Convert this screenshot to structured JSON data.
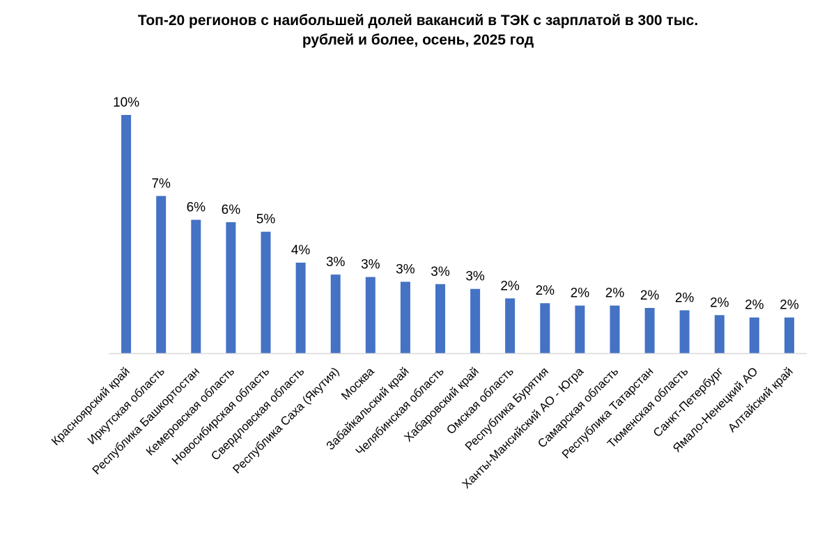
{
  "chart_data": {
    "type": "bar",
    "title_lines": [
      "Топ-20 регионов с наибольшей долей вакансий в ТЭК с зарплатой в 300 тыс.",
      "рублей и более, осень, 2025 год"
    ],
    "xlabel": "",
    "ylabel": "",
    "ylim": [
      0,
      10
    ],
    "grid": false,
    "legend": "none",
    "bar_color": "#4472C4",
    "axis_color": "#D9D9D9",
    "categories": [
      "Красноярский край",
      "Иркутская область",
      "Республика Башкортостан",
      "Кемеровская область",
      "Новосибирская область",
      "Свердловская область",
      "Республика Саха (Якутия)",
      "Москва",
      "Забайкальский край",
      "Челябинская область",
      "Хабаровский край",
      "Омская область",
      "Республика Бурятия",
      "Ханты-Мансийский АО - Югра",
      "Самарская область",
      "Республика Татарстан",
      "Тюменская область",
      "Санкт-Петербург",
      "Ямало-Ненецкий АО",
      "Алтайский край"
    ],
    "values": [
      10.0,
      6.6,
      5.6,
      5.5,
      5.1,
      3.8,
      3.3,
      3.2,
      3.0,
      2.9,
      2.7,
      2.3,
      2.1,
      2.0,
      2.0,
      1.9,
      1.8,
      1.6,
      1.5,
      1.5
    ],
    "data_labels": [
      "10%",
      "7%",
      "6%",
      "6%",
      "5%",
      "4%",
      "3%",
      "3%",
      "3%",
      "3%",
      "3%",
      "2%",
      "2%",
      "2%",
      "2%",
      "2%",
      "2%",
      "2%",
      "2%",
      "2%"
    ]
  }
}
